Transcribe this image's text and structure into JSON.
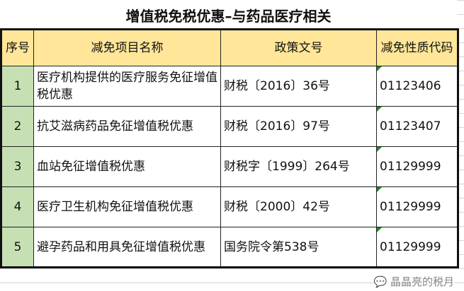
{
  "title": "增值税免税优惠–与药品医疗相关",
  "headers": [
    "序号",
    "减免项目名称",
    "政策文号",
    "减免性质代码"
  ],
  "rows": [
    {
      "no": "1",
      "name": "医疗机构提供的医疗服务免征增值税优惠",
      "policy": "财税〔2016〕36号",
      "code": "01123406"
    },
    {
      "no": "2",
      "name": "抗艾滋病药品免征增值税优惠",
      "policy": "财税〔2016〕97号",
      "code": "01123407"
    },
    {
      "no": "3",
      "name": "血站免征增值税优惠",
      "policy": "财税字〔1999〕264号",
      "code": "01129999"
    },
    {
      "no": "4",
      "name": "医疗卫生机构免征增值税优惠",
      "policy": "财税〔2000〕42号",
      "code": "01129999"
    },
    {
      "no": "5",
      "name": "避孕药品和用具免征增值税优惠",
      "policy": "国务院令第538号",
      "code": "01129999"
    }
  ],
  "watermark": "晶晶亮的税月",
  "colors": {
    "header": "#ffe699",
    "seq": "#c6e0b4",
    "marker": "#1a8a1a"
  }
}
